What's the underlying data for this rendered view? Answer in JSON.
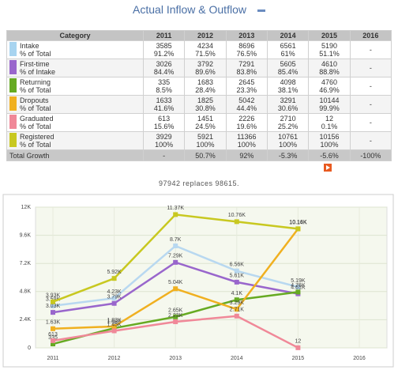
{
  "header": {
    "title": "Actual Inflow & Outflow"
  },
  "table": {
    "columns": [
      "Category",
      "2011",
      "2012",
      "2013",
      "2014",
      "2015",
      "2016"
    ],
    "rows": [
      {
        "label": [
          "Intake",
          "% of Total"
        ],
        "color": "#a8d4f0",
        "cells": [
          [
            "3585",
            "91.2%"
          ],
          [
            "4234",
            "71.5%"
          ],
          [
            "8696",
            "76.5%"
          ],
          [
            "6561",
            "61%"
          ],
          [
            "5190",
            "51.1%"
          ],
          [
            "-"
          ]
        ]
      },
      {
        "label": [
          "First-time",
          "% of Intake"
        ],
        "color": "#9966cc",
        "cells": [
          [
            "3026",
            "84.4%"
          ],
          [
            "3792",
            "89.6%"
          ],
          [
            "7291",
            "83.8%"
          ],
          [
            "5605",
            "85.4%"
          ],
          [
            "4610",
            "88.8%"
          ],
          [
            "-"
          ]
        ]
      },
      {
        "label": [
          "Returning",
          "% of Total"
        ],
        "color": "#66aa22",
        "cells": [
          [
            "335",
            "8.5%"
          ],
          [
            "1683",
            "28.4%"
          ],
          [
            "2645",
            "23.3%"
          ],
          [
            "4098",
            "38.1%"
          ],
          [
            "4760",
            "46.9%"
          ],
          [
            "-"
          ]
        ]
      },
      {
        "label": [
          "Dropouts",
          "% of Total"
        ],
        "color": "#f0b020",
        "cells": [
          [
            "1633",
            "41.6%"
          ],
          [
            "1825",
            "30.8%"
          ],
          [
            "5042",
            "44.4%"
          ],
          [
            "3291",
            "30.6%"
          ],
          [
            "10144",
            "99.9%"
          ],
          [
            "-"
          ]
        ]
      },
      {
        "label": [
          "Graduated",
          "% of Total"
        ],
        "color": "#f08898",
        "cells": [
          [
            "613",
            "15.6%"
          ],
          [
            "1451",
            "24.5%"
          ],
          [
            "2226",
            "19.6%"
          ],
          [
            "2710",
            "25.2%"
          ],
          [
            "12",
            "0.1%"
          ],
          [
            "-"
          ]
        ]
      },
      {
        "label": [
          "Registered",
          "% of Total"
        ],
        "color": "#c8c820",
        "cells": [
          [
            "3929",
            "100%"
          ],
          [
            "5921",
            "100%"
          ],
          [
            "11366",
            "100%"
          ],
          [
            "10761",
            "100%"
          ],
          [
            "10156",
            "100%"
          ],
          [
            "-"
          ]
        ]
      }
    ],
    "total": {
      "label": "Total Growth",
      "cells": [
        "-",
        "50.7%",
        "92%",
        "-5.3%",
        "-5.6%",
        "-100%"
      ]
    }
  },
  "note": "97942 replaces 98615.",
  "chart_data": {
    "type": "line",
    "categories": [
      "2011",
      "2012",
      "2013",
      "2014",
      "2015",
      "2016"
    ],
    "ylim": [
      0,
      12000
    ],
    "yticks": [
      0,
      {
        "value": 2400,
        "label": "2.4K"
      },
      {
        "value": 4800,
        "label": "4.8K"
      },
      {
        "value": 7200,
        "label": "7.2K"
      },
      {
        "value": 9600,
        "label": "9.6K"
      },
      {
        "value": 12000,
        "label": "12K"
      }
    ],
    "grid": true,
    "series": [
      {
        "color": "#b8d8f0",
        "values": [
          3585,
          4234,
          8696,
          6561,
          5190,
          null
        ],
        "value_labels": [
          "3.59K",
          "4.23K",
          "8.7K",
          "6.56K",
          "5.19K",
          null
        ]
      },
      {
        "color": "#9966cc",
        "values": [
          3026,
          3792,
          7291,
          5605,
          4610,
          null
        ],
        "value_labels": [
          "3.03K",
          "3.79K",
          "7.29K",
          "5.61K",
          "4.61K",
          null
        ]
      },
      {
        "color": "#66aa22",
        "values": [
          335,
          1683,
          2645,
          4098,
          4760,
          null
        ],
        "value_labels": [
          "335",
          "1.68K",
          "2.65K",
          "4.1K",
          "4.76K",
          null
        ]
      },
      {
        "color": "#f0b020",
        "values": [
          1633,
          1825,
          5042,
          3291,
          10144,
          null
        ],
        "value_labels": [
          "1.63K",
          "1.83K",
          "5.04K",
          "3.29K",
          "10.14K",
          null
        ]
      },
      {
        "color": "#f08898",
        "values": [
          613,
          1451,
          2226,
          2710,
          12,
          null
        ],
        "value_labels": [
          "613",
          "1.45K",
          "2.23K",
          "2.71K",
          "12",
          null
        ]
      },
      {
        "color": "#c8c820",
        "values": [
          3929,
          5921,
          11366,
          10761,
          10156,
          null
        ],
        "value_labels": [
          "3.93K",
          "5.92K",
          "11.37K",
          "10.76K",
          "10.16K",
          null
        ]
      }
    ]
  }
}
